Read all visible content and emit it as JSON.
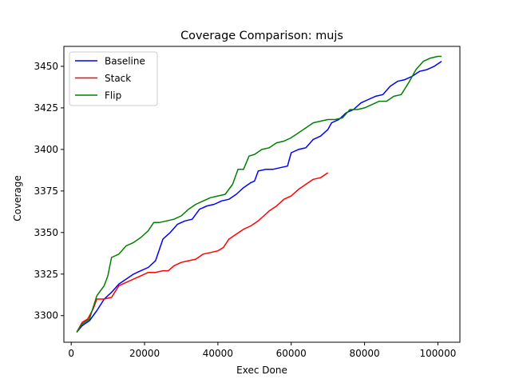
{
  "chart_data": {
    "type": "line",
    "title": "Coverage Comparison: mujs",
    "xlabel": "Exec Done",
    "ylabel": "Coverage",
    "xlim": [
      -2000,
      106000
    ],
    "ylim": [
      3284,
      3462
    ],
    "xticks": [
      0,
      20000,
      40000,
      60000,
      80000,
      100000
    ],
    "yticks": [
      3300,
      3325,
      3350,
      3375,
      3400,
      3425,
      3450
    ],
    "grid": false,
    "legend_position": "top-left",
    "series": [
      {
        "name": "Baseline",
        "color": "#0000ff",
        "points": [
          [
            1500,
            3290
          ],
          [
            3000,
            3294
          ],
          [
            5000,
            3297
          ],
          [
            7000,
            3303
          ],
          [
            9000,
            3310
          ],
          [
            11000,
            3314
          ],
          [
            13000,
            3319
          ],
          [
            15000,
            3322
          ],
          [
            17000,
            3325
          ],
          [
            19000,
            3327
          ],
          [
            21000,
            3329
          ],
          [
            23000,
            3333
          ],
          [
            25000,
            3346
          ],
          [
            27000,
            3350
          ],
          [
            29000,
            3355
          ],
          [
            31000,
            3357
          ],
          [
            33000,
            3358
          ],
          [
            35000,
            3364
          ],
          [
            37000,
            3366
          ],
          [
            39000,
            3367
          ],
          [
            41000,
            3369
          ],
          [
            43000,
            3370
          ],
          [
            45000,
            3373
          ],
          [
            47000,
            3377
          ],
          [
            49000,
            3380
          ],
          [
            50000,
            3381
          ],
          [
            51000,
            3387
          ],
          [
            53000,
            3388
          ],
          [
            55000,
            3388
          ],
          [
            57000,
            3389
          ],
          [
            59000,
            3390
          ],
          [
            60000,
            3398
          ],
          [
            62000,
            3400
          ],
          [
            64000,
            3401
          ],
          [
            66000,
            3406
          ],
          [
            68000,
            3408
          ],
          [
            70000,
            3412
          ],
          [
            71000,
            3416
          ],
          [
            73000,
            3418
          ],
          [
            75000,
            3422
          ],
          [
            77000,
            3424
          ],
          [
            79000,
            3428
          ],
          [
            81000,
            3430
          ],
          [
            83000,
            3432
          ],
          [
            85000,
            3433
          ],
          [
            87000,
            3438
          ],
          [
            89000,
            3441
          ],
          [
            91000,
            3442
          ],
          [
            93000,
            3444
          ],
          [
            95000,
            3447
          ],
          [
            97000,
            3448
          ],
          [
            99000,
            3450
          ],
          [
            101000,
            3453
          ]
        ]
      },
      {
        "name": "Stack",
        "color": "#ff0000",
        "points": [
          [
            1500,
            3290
          ],
          [
            3000,
            3296
          ],
          [
            4500,
            3298
          ],
          [
            6000,
            3304
          ],
          [
            7000,
            3310
          ],
          [
            9000,
            3310
          ],
          [
            11000,
            3311
          ],
          [
            13000,
            3318
          ],
          [
            15000,
            3320
          ],
          [
            17000,
            3322
          ],
          [
            19000,
            3324
          ],
          [
            21000,
            3326
          ],
          [
            23000,
            3326
          ],
          [
            25000,
            3327
          ],
          [
            26500,
            3327
          ],
          [
            28000,
            3330
          ],
          [
            30000,
            3332
          ],
          [
            32000,
            3333
          ],
          [
            34000,
            3334
          ],
          [
            36000,
            3337
          ],
          [
            38000,
            3338
          ],
          [
            40000,
            3339
          ],
          [
            41500,
            3341
          ],
          [
            43000,
            3346
          ],
          [
            45000,
            3349
          ],
          [
            47000,
            3352
          ],
          [
            49000,
            3354
          ],
          [
            51000,
            3357
          ],
          [
            52500,
            3360
          ],
          [
            54000,
            3363
          ],
          [
            56000,
            3366
          ],
          [
            58000,
            3370
          ],
          [
            60000,
            3372
          ],
          [
            62000,
            3376
          ],
          [
            64000,
            3379
          ],
          [
            66000,
            3382
          ],
          [
            68000,
            3383
          ],
          [
            70000,
            3386
          ]
        ]
      },
      {
        "name": "Flip",
        "color": "#008000",
        "points": [
          [
            1500,
            3290
          ],
          [
            3000,
            3295
          ],
          [
            5000,
            3298
          ],
          [
            7000,
            3312
          ],
          [
            9000,
            3318
          ],
          [
            10000,
            3324
          ],
          [
            11000,
            3335
          ],
          [
            13000,
            3337
          ],
          [
            15000,
            3342
          ],
          [
            17000,
            3344
          ],
          [
            19000,
            3347
          ],
          [
            21000,
            3351
          ],
          [
            22500,
            3356
          ],
          [
            24000,
            3356
          ],
          [
            26000,
            3357
          ],
          [
            28000,
            3358
          ],
          [
            30000,
            3360
          ],
          [
            32000,
            3364
          ],
          [
            34000,
            3367
          ],
          [
            36000,
            3369
          ],
          [
            38000,
            3371
          ],
          [
            40000,
            3372
          ],
          [
            42000,
            3373
          ],
          [
            44000,
            3379
          ],
          [
            45500,
            3388
          ],
          [
            47000,
            3388
          ],
          [
            48500,
            3396
          ],
          [
            50000,
            3397
          ],
          [
            52000,
            3400
          ],
          [
            54000,
            3401
          ],
          [
            56000,
            3404
          ],
          [
            58000,
            3405
          ],
          [
            60000,
            3407
          ],
          [
            62000,
            3410
          ],
          [
            64000,
            3413
          ],
          [
            66000,
            3416
          ],
          [
            68000,
            3417
          ],
          [
            70000,
            3418
          ],
          [
            72000,
            3418
          ],
          [
            74000,
            3419
          ],
          [
            76000,
            3424
          ],
          [
            78000,
            3424
          ],
          [
            80000,
            3425
          ],
          [
            82000,
            3427
          ],
          [
            84000,
            3429
          ],
          [
            86000,
            3429
          ],
          [
            88000,
            3432
          ],
          [
            90000,
            3433
          ],
          [
            92000,
            3440
          ],
          [
            94000,
            3448
          ],
          [
            96000,
            3453
          ],
          [
            98000,
            3455
          ],
          [
            100000,
            3456
          ],
          [
            101000,
            3456
          ]
        ]
      }
    ]
  }
}
